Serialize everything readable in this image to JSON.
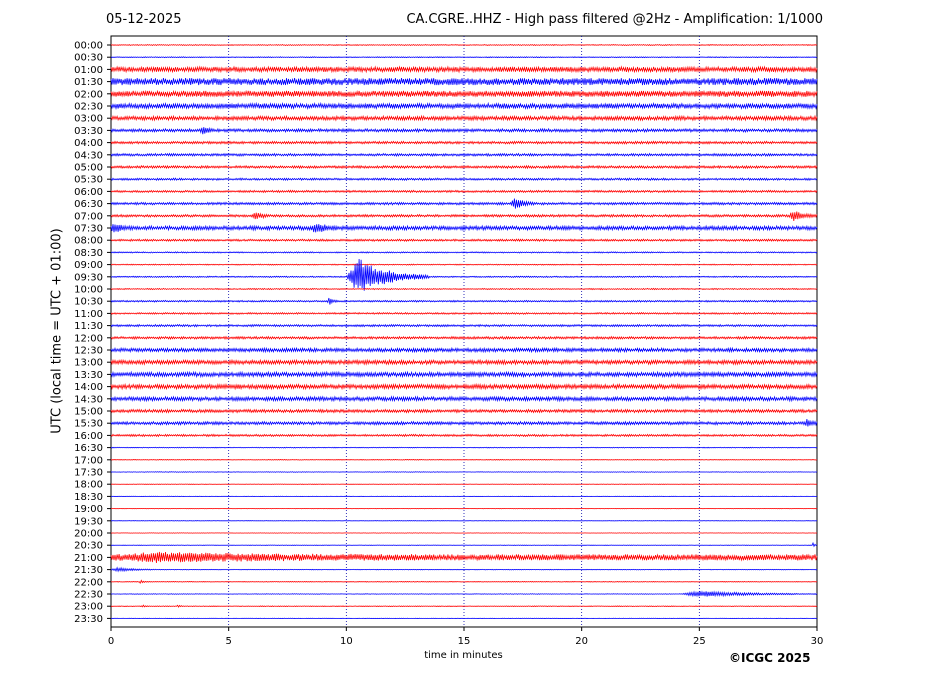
{
  "header": {
    "date": "05-12-2025",
    "title": "CA.CGRE..HHZ - High pass filtered @2Hz - Amplification: 1/1000"
  },
  "footer": {
    "copyright": "©ICGC 2025"
  },
  "colors": {
    "trace_a": "#ff0000",
    "trace_b": "#0000ff",
    "axis": "#000000",
    "grid": "#0000aa"
  },
  "chart_data": {
    "type": "line",
    "title": "CA.CGRE..HHZ - High pass filtered @2Hz - Amplification: 1/1000",
    "subtitle": "05-12-2025",
    "xlabel": "time in minutes",
    "ylabel": "UTC (local time = UTC + 01:00)",
    "xlim": [
      0,
      30
    ],
    "x_ticks": [
      0,
      5,
      10,
      15,
      20,
      25,
      30
    ],
    "grid": "vertical dotted lines at each x tick",
    "row_labels": [
      "00:00",
      "00:30",
      "01:00",
      "01:30",
      "02:00",
      "02:30",
      "03:00",
      "03:30",
      "04:00",
      "04:30",
      "05:00",
      "05:30",
      "06:00",
      "06:30",
      "07:00",
      "07:30",
      "08:00",
      "08:30",
      "09:00",
      "09:30",
      "10:00",
      "10:30",
      "11:00",
      "11:30",
      "12:00",
      "12:30",
      "13:00",
      "13:30",
      "14:00",
      "14:30",
      "15:00",
      "15:30",
      "16:00",
      "16:30",
      "17:00",
      "17:30",
      "18:00",
      "18:30",
      "19:00",
      "19:30",
      "20:00",
      "20:30",
      "21:00",
      "21:30",
      "22:00",
      "22:30",
      "23:00",
      "23:30"
    ],
    "row_colors": [
      "red",
      "blue",
      "red",
      "blue",
      "red",
      "blue",
      "red",
      "blue",
      "red",
      "blue",
      "red",
      "blue",
      "red",
      "blue",
      "red",
      "blue",
      "red",
      "blue",
      "red",
      "blue",
      "red",
      "blue",
      "red",
      "blue",
      "red",
      "blue",
      "red",
      "blue",
      "red",
      "blue",
      "red",
      "blue",
      "red",
      "blue",
      "red",
      "blue",
      "red",
      "blue",
      "red",
      "blue",
      "red",
      "blue",
      "red",
      "blue",
      "red",
      "blue",
      "red",
      "blue"
    ],
    "noise_level": [
      0.5,
      0.4,
      2.5,
      3.5,
      3.0,
      2.5,
      2.0,
      1.5,
      1.2,
      1.2,
      1.2,
      1.0,
      1.0,
      1.2,
      1.2,
      2.0,
      1.0,
      0.6,
      0.5,
      0.6,
      0.6,
      0.8,
      0.8,
      1.0,
      1.2,
      1.8,
      2.0,
      2.2,
      2.2,
      2.0,
      1.5,
      1.5,
      1.0,
      0.4,
      0.3,
      0.3,
      0.2,
      0.2,
      0.2,
      0.2,
      0.2,
      0.2,
      3.0,
      0.3,
      0.3,
      0.3,
      0.3,
      0.2
    ],
    "events": [
      {
        "row": "03:30",
        "start": 3.8,
        "duration": 0.6,
        "amplitude": 4
      },
      {
        "row": "06:30",
        "start": 17.0,
        "duration": 1.0,
        "amplitude": 6
      },
      {
        "row": "07:00",
        "start": 6.0,
        "duration": 0.8,
        "amplitude": 4
      },
      {
        "row": "07:00",
        "start": 28.8,
        "duration": 1.2,
        "amplitude": 5
      },
      {
        "row": "07:30",
        "start": 0.0,
        "duration": 0.8,
        "amplitude": 5
      },
      {
        "row": "07:30",
        "start": 8.5,
        "duration": 1.2,
        "amplitude": 4
      },
      {
        "row": "09:30",
        "start": 10.0,
        "duration": 3.5,
        "amplitude": 18
      },
      {
        "row": "10:30",
        "start": 9.2,
        "duration": 0.4,
        "amplitude": 4
      },
      {
        "row": "15:30",
        "start": 29.5,
        "duration": 0.5,
        "amplitude": 4
      },
      {
        "row": "20:30",
        "start": 29.8,
        "duration": 0.2,
        "amplitude": 3
      },
      {
        "row": "21:00",
        "start": 0.0,
        "duration": 13.5,
        "amplitude": 3
      },
      {
        "row": "21:30",
        "start": 0.0,
        "duration": 1.9,
        "amplitude": 2
      },
      {
        "row": "22:00",
        "start": 1.2,
        "duration": 0.3,
        "amplitude": 2
      },
      {
        "row": "22:30",
        "start": 24.2,
        "duration": 5.8,
        "amplitude": 3
      },
      {
        "row": "23:00",
        "start": 1.3,
        "duration": 0.3,
        "amplitude": 1.5
      },
      {
        "row": "23:00",
        "start": 2.8,
        "duration": 0.3,
        "amplitude": 1.5
      }
    ]
  }
}
